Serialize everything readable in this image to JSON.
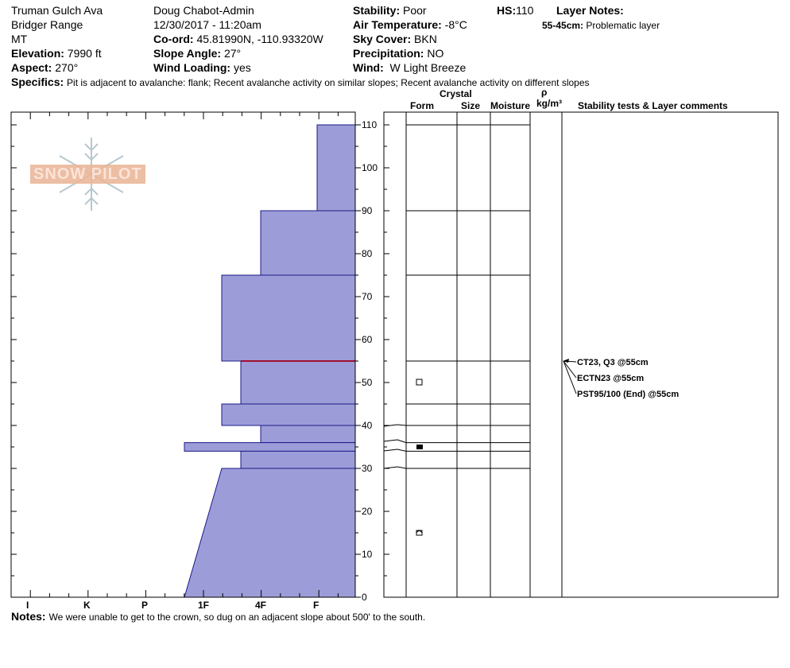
{
  "header": {
    "location": "Truman Gulch Ava",
    "range": "Bridger Range",
    "state": "MT",
    "elevation_label": "Elevation:",
    "elevation_value": "7990 ft",
    "aspect_label": "Aspect:",
    "aspect_value": "270°",
    "observer": "Doug Chabot-Admin",
    "datetime": "12/30/2017 - 11:20am",
    "coord_label": "Co-ord:",
    "coord_value": "45.81990N, -110.93320W",
    "slope_label": "Slope Angle:",
    "slope_value": "27°",
    "wind_loading_label": "Wind Loading:",
    "wind_loading_value": "yes",
    "stability_label": "Stability:",
    "stability_value": "Poor",
    "air_temp_label": "Air Temperature:",
    "air_temp_value": "-8°C",
    "sky_label": "Sky Cover:",
    "sky_value": "BKN",
    "precip_label": "Precipitation:",
    "precip_value": "NO",
    "wind_label": "Wind:",
    "wind_value": "W Light Breeze",
    "hs_label": "HS:",
    "hs_value": "110",
    "layer_notes_label": "Layer Notes:",
    "layer_note_range": "55-45cm:",
    "layer_note_text": "Problematic layer",
    "specifics_label": "Specifics:",
    "specifics_text": "Pit is adjacent to avalanche: flank;  Recent avalanche activity on similar slopes;  Recent avalanche activity on different slopes"
  },
  "columns": {
    "crystal": "Crystal",
    "form": "Form",
    "size": "Size",
    "moisture": "Moisture",
    "rho": "ρ",
    "density_unit": "kg/m³",
    "stability_tests": "Stability tests & Layer comments"
  },
  "logo_text": "SNOW PILOT",
  "notes_label": "Notes:",
  "notes_text": "We were unable to get to the crown, so dug on an adjacent slope about 500' to the south.",
  "chart_data": {
    "type": "snow-profile",
    "hardness_axis": [
      "I",
      "K",
      "P",
      "1F",
      "4F",
      "F"
    ],
    "depth_ticks": [
      0,
      10,
      20,
      30,
      40,
      50,
      60,
      70,
      80,
      90,
      100,
      110
    ],
    "depth_range": [
      0,
      110
    ],
    "hardness_layers": [
      {
        "top": 110,
        "bottom": 90,
        "hardness": "F"
      },
      {
        "top": 90,
        "bottom": 75,
        "hardness": "4F"
      },
      {
        "top": 75,
        "bottom": 55,
        "hardness": "1F+"
      },
      {
        "top": 55,
        "bottom": 45,
        "hardness": "4F+"
      },
      {
        "top": 45,
        "bottom": 40,
        "hardness": "1F+"
      },
      {
        "top": 40,
        "bottom": 36,
        "hardness": "4F"
      },
      {
        "top": 36,
        "bottom": 34,
        "hardness": "1F-"
      },
      {
        "top": 34,
        "bottom": 30,
        "hardness": "4F+"
      },
      {
        "top": 30,
        "bottom": 0,
        "hardness": "1F+ to 1F-"
      }
    ],
    "layer_boundaries": [
      110,
      90,
      75,
      55,
      45,
      40,
      36,
      34,
      30
    ],
    "problem_layer_depth": 55,
    "crystal_forms": [
      {
        "depth": 50,
        "symbol": "open-square"
      },
      {
        "depth": 35,
        "symbol": "filled-square"
      },
      {
        "depth": 15,
        "symbol": "half-square"
      }
    ],
    "stability_tests": [
      {
        "text": "CT23, Q3 @55cm",
        "depth": 55
      },
      {
        "text": "ECTN23 @55cm",
        "depth": 55
      },
      {
        "text": "PST95/100 (End) @55cm",
        "depth": 55
      }
    ]
  }
}
